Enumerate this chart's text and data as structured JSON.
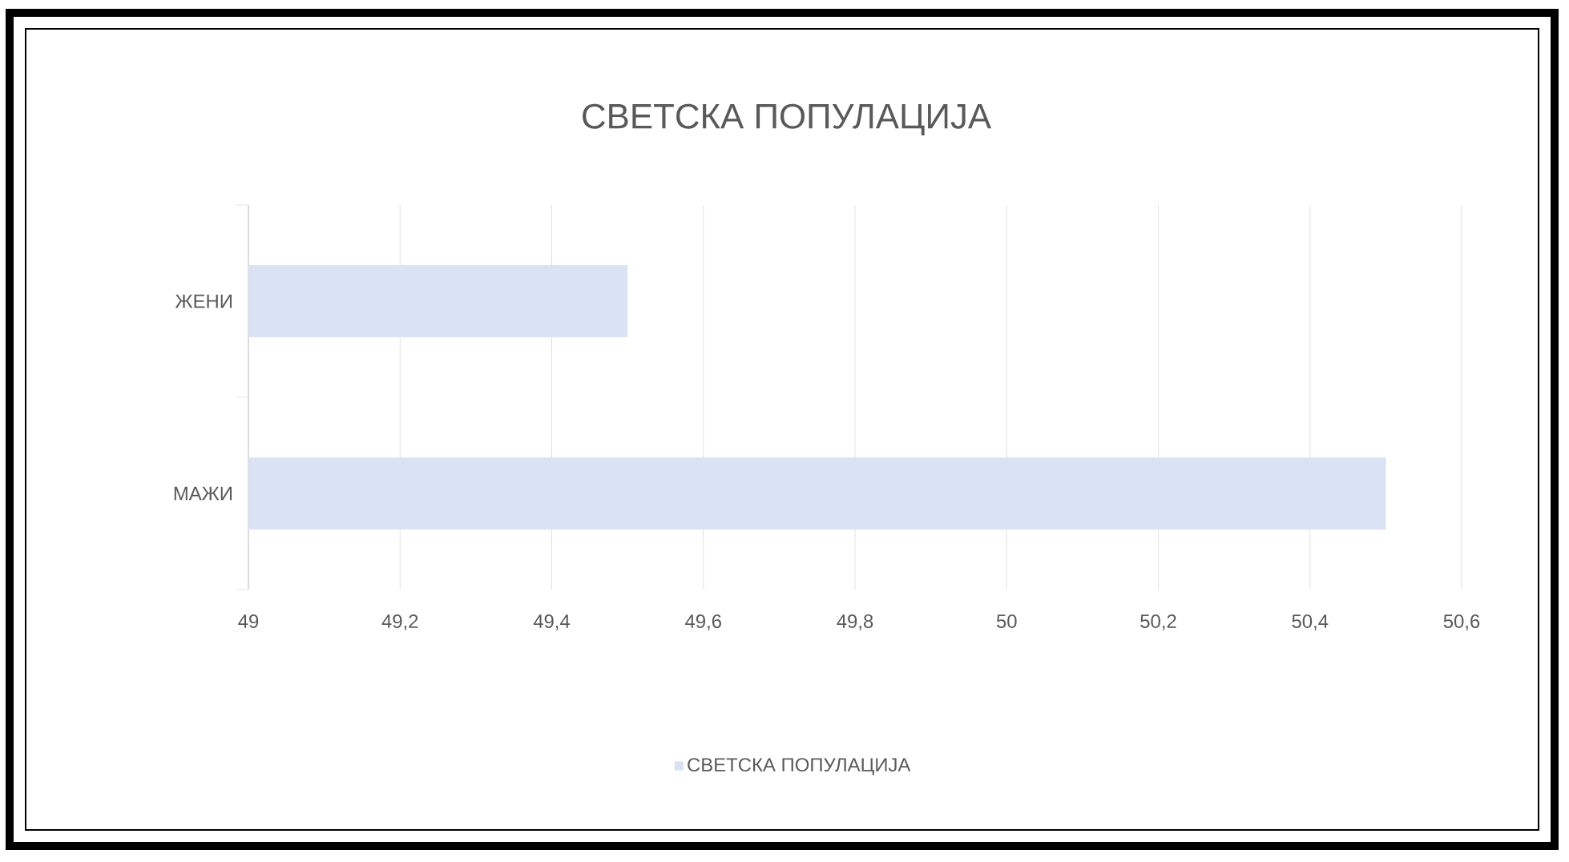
{
  "chart_data": {
    "type": "bar",
    "orientation": "horizontal",
    "title": "СВЕТСКА ПОПУЛАЦИЈА",
    "categories": [
      "ЖЕНИ",
      "МАЖИ"
    ],
    "series": [
      {
        "name": "СВЕТСКА ПОПУЛАЦИЈА",
        "color": "#dae3f3",
        "values": [
          49.5,
          50.5
        ]
      }
    ],
    "xlim": [
      49,
      50.6
    ],
    "xticks": [
      49,
      {
        "value": 49.2,
        "label": "49,2"
      },
      {
        "value": 49.4,
        "label": "49,4"
      },
      {
        "value": 49.6,
        "label": "49,6"
      },
      {
        "value": 49.8,
        "label": "49,8"
      },
      50,
      {
        "value": 50.2,
        "label": "50,2"
      },
      {
        "value": 50.4,
        "label": "50,4"
      },
      {
        "value": 50.6,
        "label": "50,6"
      }
    ],
    "grid": "x",
    "legend": "bottom"
  }
}
